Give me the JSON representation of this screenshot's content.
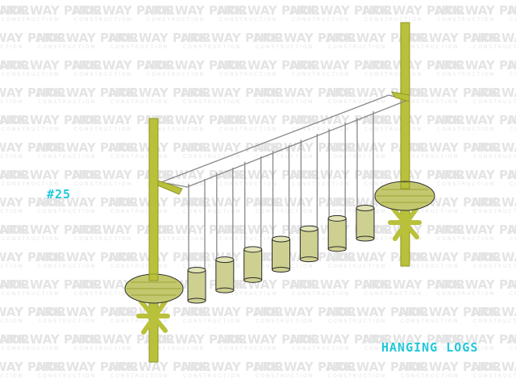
{
  "watermark": {
    "brand": "NORWAY PARK",
    "subtitle": "CONSTRUCTION",
    "color": "#e4e4e4"
  },
  "item_number": "#25",
  "product_name": "HANGING LOGS",
  "colors": {
    "label": "#21c8d9",
    "pole": "#b9c13a",
    "pole_shade": "#8f9626",
    "platform": "#c3c86e",
    "log": "#cdd090",
    "log_top": "#e2e4b6",
    "rope": "#888888",
    "outline": "#2c2c2c"
  },
  "scene": {
    "hanging_log_count": 7
  }
}
